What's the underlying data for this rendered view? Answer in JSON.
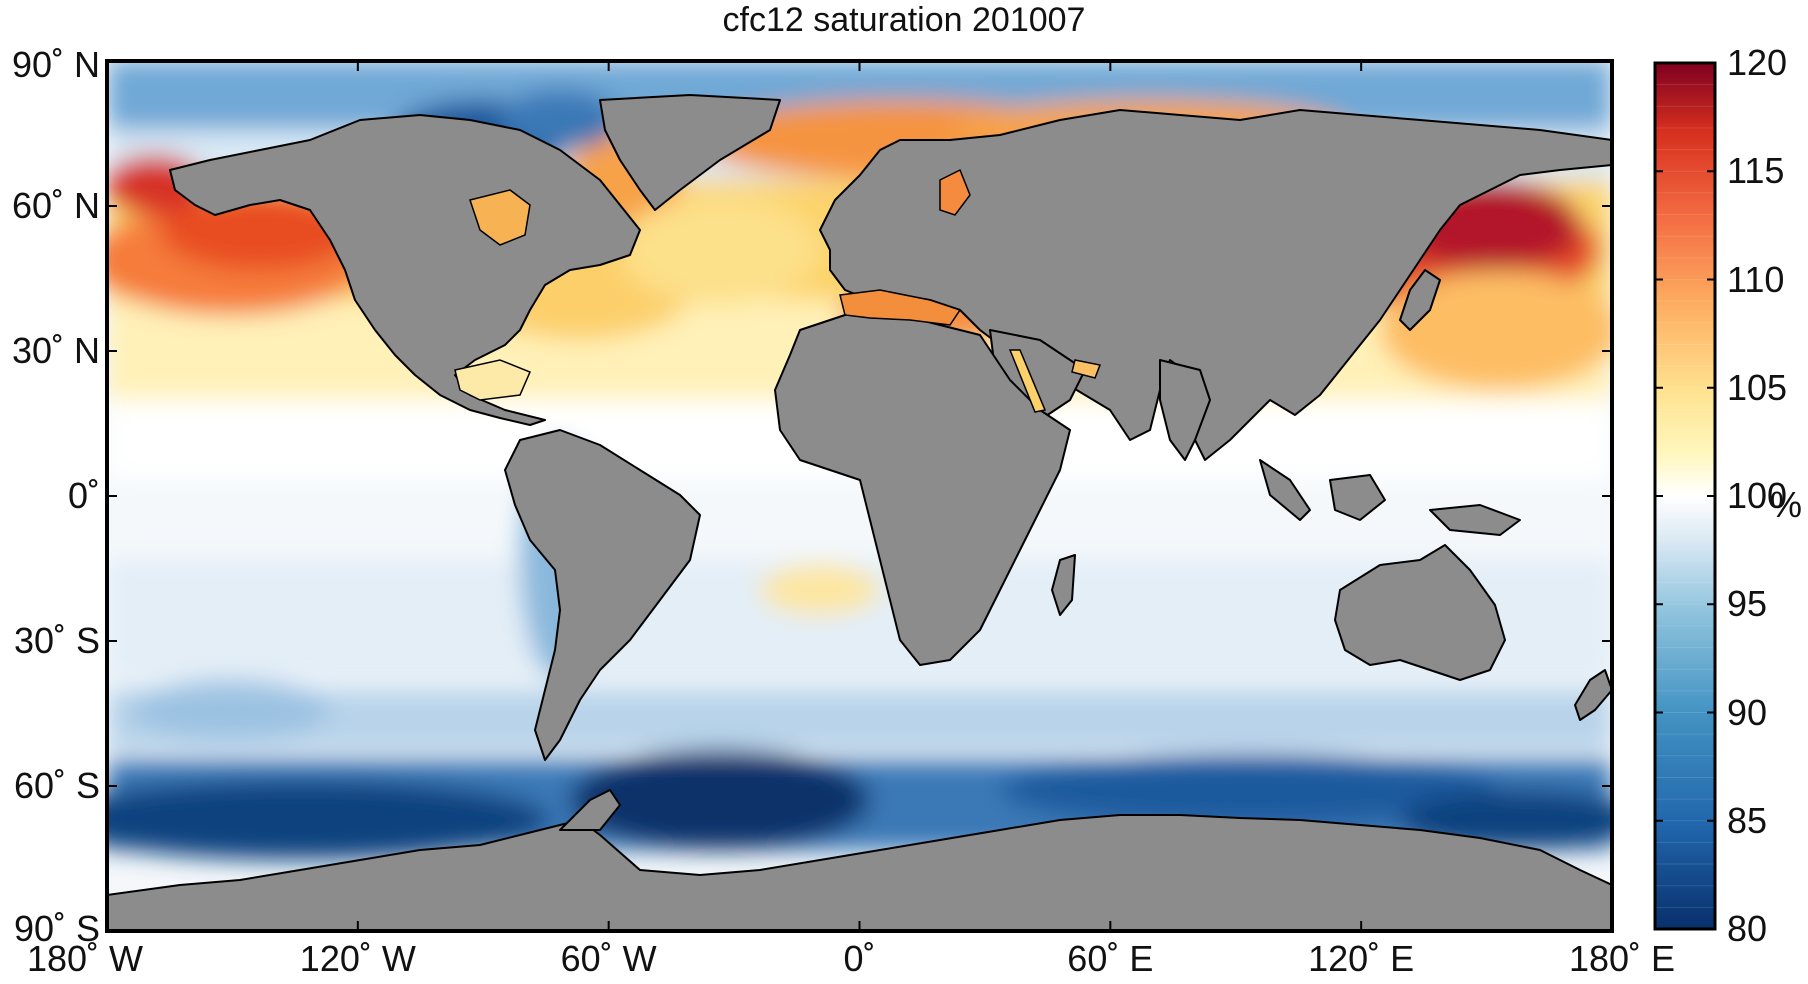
{
  "title": "cfc12 saturation 201007",
  "y_ticks": [
    {
      "label": "90˚ N",
      "lat": 90
    },
    {
      "label": "60˚ N",
      "lat": 60
    },
    {
      "label": "30˚ N",
      "lat": 30
    },
    {
      "label": "0˚",
      "lat": 0
    },
    {
      "label": "30˚ S",
      "lat": -30
    },
    {
      "label": "60˚ S",
      "lat": -60
    },
    {
      "label": "90˚ S",
      "lat": -90
    }
  ],
  "x_ticks": [
    {
      "label": "180˚ W",
      "lon": -180
    },
    {
      "label": "120˚ W",
      "lon": -120
    },
    {
      "label": "60˚ W",
      "lon": -60
    },
    {
      "label": "0˚",
      "lon": 0
    },
    {
      "label": "60˚ E",
      "lon": 60
    },
    {
      "label": "120˚ E",
      "lon": 120
    },
    {
      "label": "180˚ E",
      "lon": 180
    }
  ],
  "colorbar": {
    "min": 80,
    "max": 120,
    "ticks": [
      "80",
      "85",
      "90",
      "95",
      "100",
      "105",
      "110",
      "115",
      "120"
    ],
    "unit": "%",
    "colors_low": [
      "#08306b",
      "#2166ac",
      "#4393c3",
      "#92c5de",
      "#d1e5f0",
      "#ffffff"
    ],
    "colors_high": [
      "#ffffff",
      "#fff7bc",
      "#fee391",
      "#fdae61",
      "#f46d43",
      "#d73027",
      "#67001f"
    ]
  },
  "colors": {
    "land": "#8c8c8c",
    "coast": "#000000",
    "ocean_neutral": "#f4f8fb"
  }
}
